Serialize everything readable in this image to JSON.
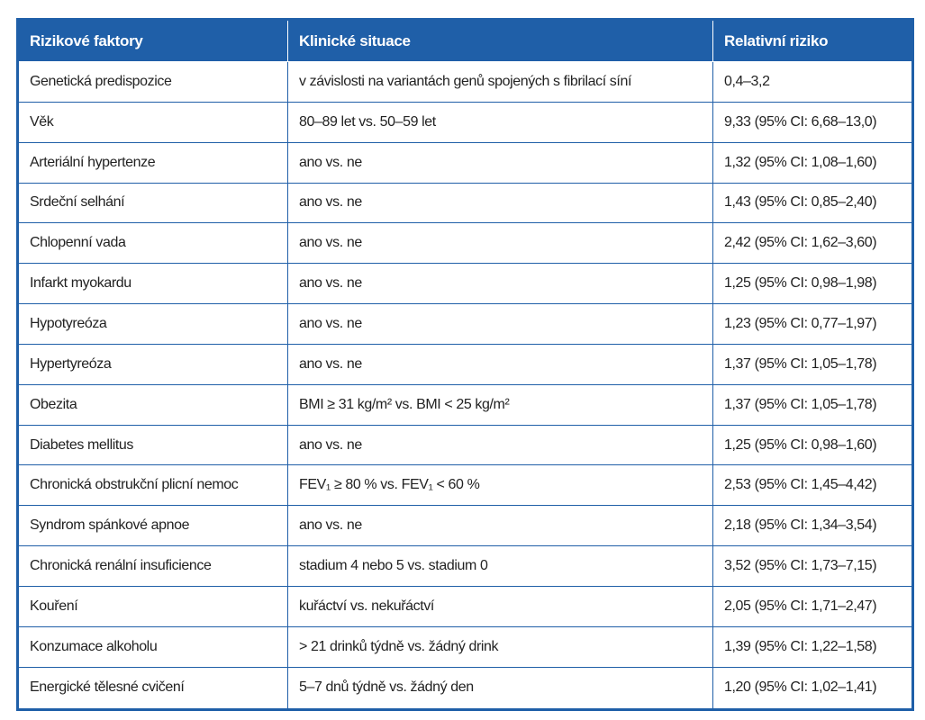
{
  "table": {
    "header": [
      "Rizikové faktory",
      "Klinické situace",
      "Relativní riziko"
    ],
    "rows": [
      [
        "Genetická predispozice",
        "v závislosti na variantách genů spojených s fibrilací síní",
        "0,4–3,2"
      ],
      [
        "Věk",
        "80–89 let vs. 50–59 let",
        "9,33 (95% CI: 6,68–13,0)"
      ],
      [
        "Arteriální hypertenze",
        "ano vs. ne",
        "1,32 (95% CI: 1,08–1,60)"
      ],
      [
        "Srdeční selhání",
        "ano vs. ne",
        "1,43 (95% CI: 0,85–2,40)"
      ],
      [
        "Chlopenní vada",
        "ano vs. ne",
        "2,42 (95% CI: 1,62–3,60)"
      ],
      [
        "Infarkt myokardu",
        "ano vs. ne",
        "1,25 (95% CI: 0,98–1,98)"
      ],
      [
        "Hypotyreóza",
        "ano vs. ne",
        "1,23 (95% CI: 0,77–1,97)"
      ],
      [
        "Hypertyreóza",
        "ano vs. ne",
        "1,37 (95% CI: 1,05–1,78)"
      ],
      [
        "Obezita",
        "BMI ≥ 31 kg/m² vs. BMI < 25 kg/m²",
        "1,37 (95% CI: 1,05–1,78)"
      ],
      [
        "Diabetes mellitus",
        "ano vs. ne",
        "1,25 (95% CI: 0,98–1,60)"
      ],
      [
        "Chronická obstrukční plicní nemoc",
        "FEV₁ ≥ 80 % vs. FEV₁ < 60 %",
        "2,53 (95% CI: 1,45–4,42)"
      ],
      [
        "Syndrom spánkové apnoe",
        "ano vs. ne",
        "2,18 (95% CI: 1,34–3,54)"
      ],
      [
        "Chronická renální insuficience",
        "stadium 4 nebo 5 vs. stadium 0",
        "3,52 (95% CI: 1,73–7,15)"
      ],
      [
        "Kouření",
        "kuřáctví vs. nekuřáctví",
        "2,05 (95% CI: 1,71–2,47)"
      ],
      [
        "Konzumace alkoholu",
        "> 21 drinků týdně vs. žádný drink",
        "1,39 (95% CI: 1,22–1,58)"
      ],
      [
        "Energické tělesné cvičení",
        "5–7 dnů týdně vs. žádný den",
        "1,20 (95% CI: 1,02–1,41)"
      ]
    ]
  }
}
